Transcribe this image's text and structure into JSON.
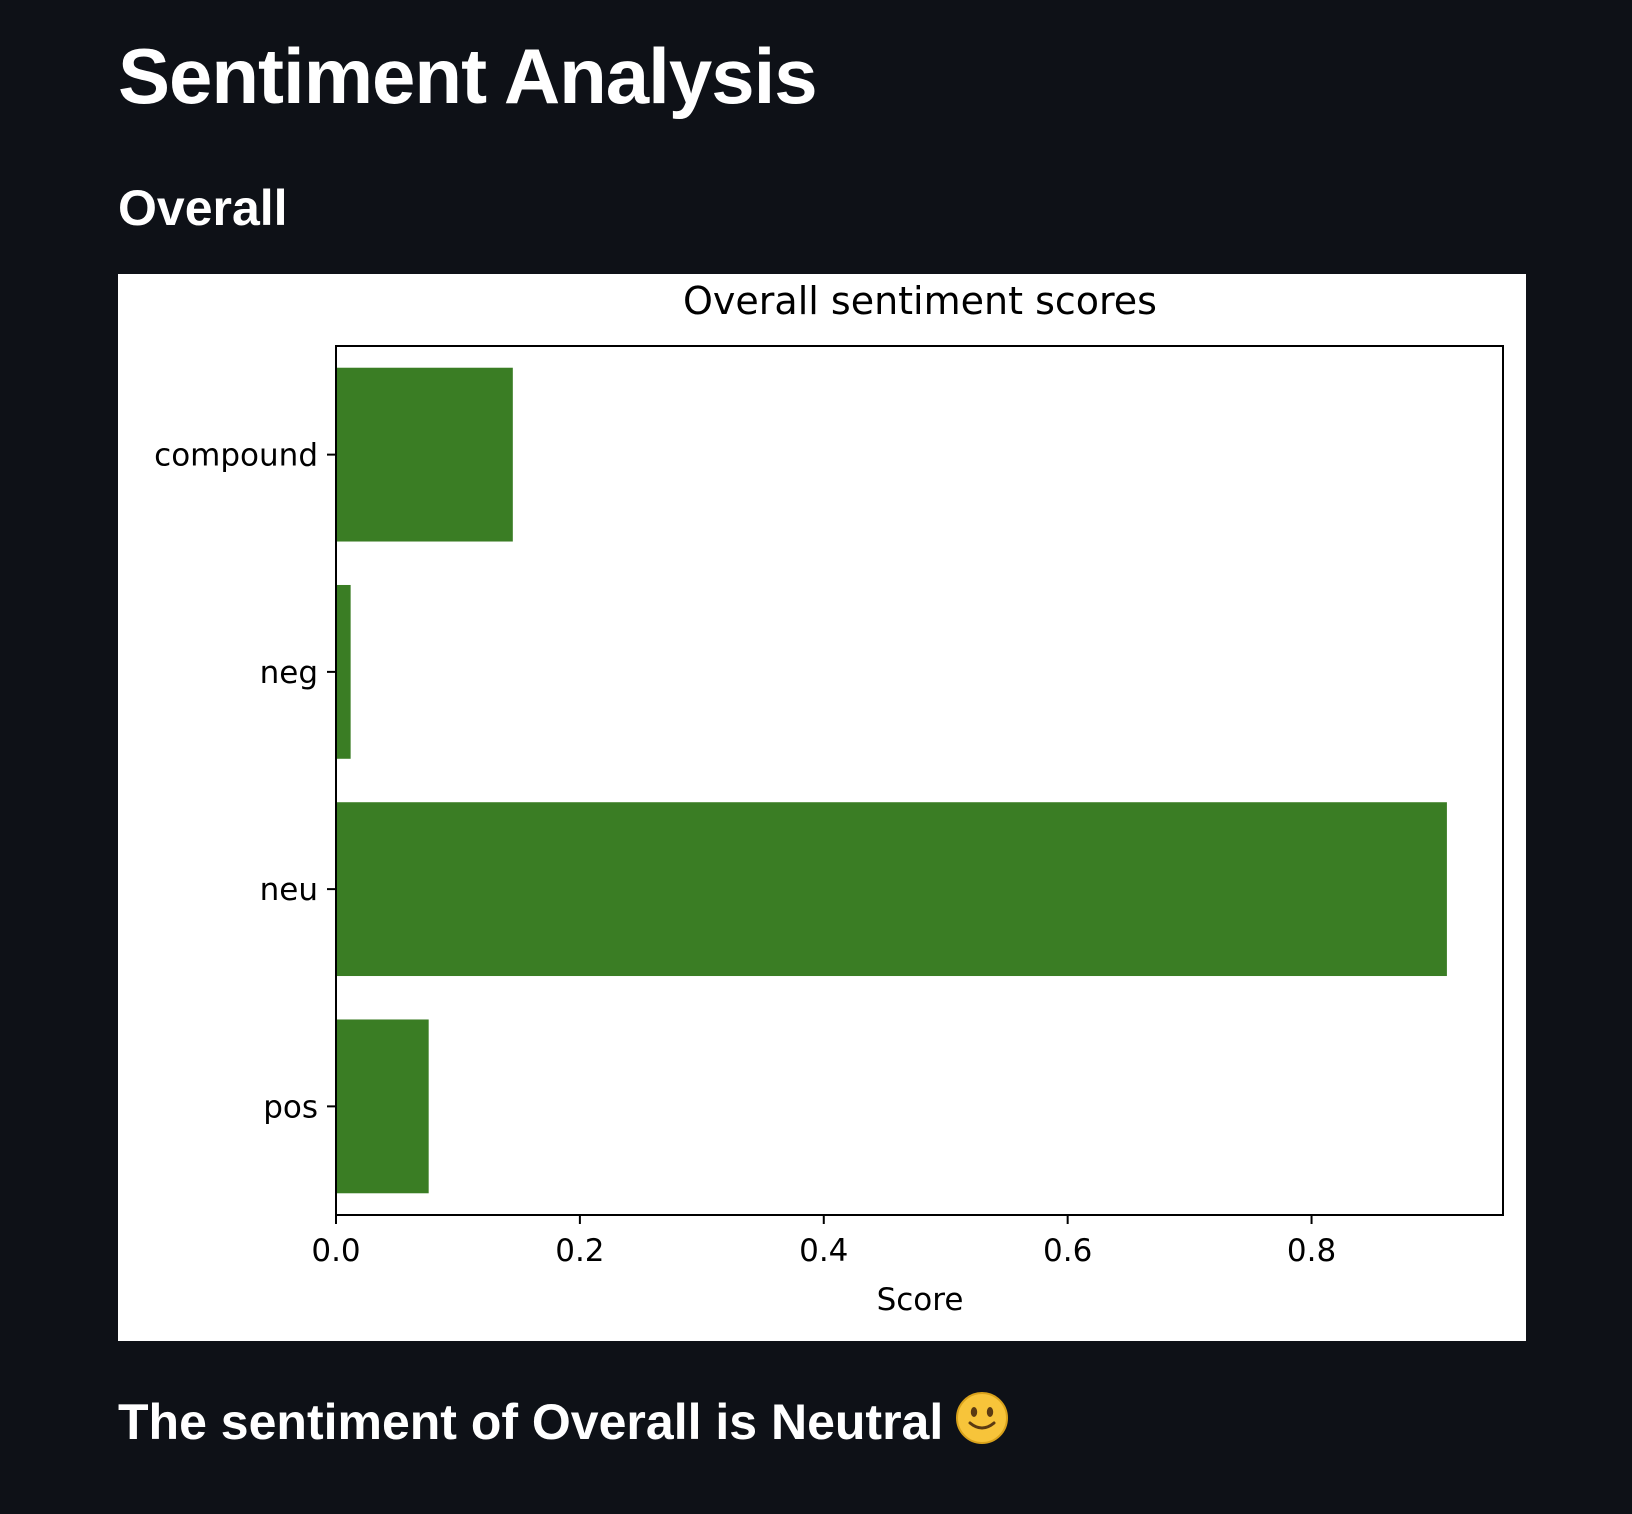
{
  "page": {
    "title": "Sentiment Analysis",
    "section_title": "Overall",
    "result_text": "The sentiment of Overall is Neutral",
    "result_icon": "slightly-smiling-face-icon"
  },
  "colors": {
    "background": "#0e1117",
    "bar": "#3a7d24",
    "text": "#ffffff"
  },
  "chart_data": {
    "type": "bar",
    "orientation": "horizontal",
    "title": "Overall sentiment scores",
    "xlabel": "Score",
    "ylabel": "",
    "categories": [
      "compound",
      "neg",
      "neu",
      "pos"
    ],
    "values": [
      0.145,
      0.012,
      0.911,
      0.076
    ],
    "xlim": [
      0,
      0.957
    ],
    "xticks": [
      "0.0",
      "0.2",
      "0.4",
      "0.6",
      "0.8"
    ],
    "grid": false
  }
}
